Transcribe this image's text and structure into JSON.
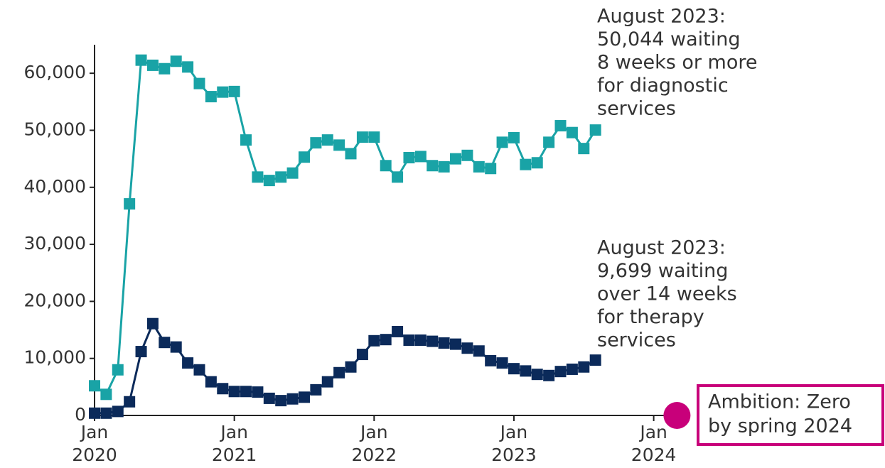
{
  "chart_data": {
    "type": "line",
    "x": [
      "2020-01",
      "2020-02",
      "2020-03",
      "2020-04",
      "2020-05",
      "2020-06",
      "2020-07",
      "2020-08",
      "2020-09",
      "2020-10",
      "2020-11",
      "2020-12",
      "2021-01",
      "2021-02",
      "2021-03",
      "2021-04",
      "2021-05",
      "2021-06",
      "2021-07",
      "2021-08",
      "2021-09",
      "2021-10",
      "2021-11",
      "2021-12",
      "2022-01",
      "2022-02",
      "2022-03",
      "2022-04",
      "2022-05",
      "2022-06",
      "2022-07",
      "2022-08",
      "2022-09",
      "2022-10",
      "2022-11",
      "2022-12",
      "2023-01",
      "2023-02",
      "2023-03",
      "2023-04",
      "2023-05",
      "2023-06",
      "2023-07",
      "2023-08"
    ],
    "series": [
      {
        "name": "Diagnostic services, waiting 8 weeks or more",
        "color": "#19a3a6",
        "values": [
          5200,
          3700,
          8000,
          37100,
          62300,
          61400,
          60800,
          62100,
          61100,
          58200,
          55900,
          56700,
          56800,
          48300,
          41800,
          41200,
          41800,
          42500,
          45300,
          47800,
          48300,
          47400,
          45900,
          48800,
          48800,
          43800,
          41800,
          45200,
          45400,
          43800,
          43600,
          45000,
          45600,
          43600,
          43300,
          47900,
          48700,
          44000,
          44300,
          47900,
          50800,
          49600,
          46800,
          50044
        ]
      },
      {
        "name": "Therapy services, waiting over 14 weeks",
        "color": "#0b2a5a",
        "values": [
          400,
          400,
          700,
          2400,
          11200,
          16100,
          12800,
          12000,
          9200,
          8000,
          5900,
          4700,
          4200,
          4200,
          4100,
          3000,
          2600,
          2900,
          3200,
          4500,
          5900,
          7500,
          8500,
          10700,
          13100,
          13300,
          14700,
          13200,
          13200,
          13000,
          12700,
          12500,
          11800,
          11300,
          9600,
          9200,
          8200,
          7800,
          7200,
          7000,
          7700,
          8100,
          8500,
          9699
        ]
      }
    ],
    "xlim": [
      "2020-01",
      "2024-02"
    ],
    "xticks": [
      {
        "value": "2020-01",
        "label": "Jan 2020"
      },
      {
        "value": "2021-01",
        "label": "Jan 2021"
      },
      {
        "value": "2022-01",
        "label": "Jan 2022"
      },
      {
        "value": "2023-01",
        "label": "Jan 2023"
      },
      {
        "value": "2024-01",
        "label": "Jan 2024"
      }
    ],
    "ylim": [
      0,
      65000
    ],
    "yticks": [
      0,
      {
        "value": 10000,
        "label": "10,000"
      },
      {
        "value": 20000,
        "label": "20,000"
      },
      {
        "value": 30000,
        "label": "30,000"
      },
      {
        "value": 40000,
        "label": "40,000"
      },
      {
        "value": 50000,
        "label": "50,000"
      },
      {
        "value": 60000,
        "label": "60,000"
      }
    ],
    "annotations": [
      {
        "lines": [
          "August 2023:",
          "50,044 waiting",
          "8 weeks or more",
          "for diagnostic",
          "services"
        ]
      },
      {
        "lines": [
          "August 2023:",
          "9,699 waiting",
          "over 14 weeks",
          "for therapy",
          "services"
        ]
      }
    ],
    "target": {
      "x": "2024-03",
      "value": 0,
      "color": "#c8007a",
      "lines": [
        "Ambition: Zero",
        "by spring 2024"
      ]
    }
  }
}
